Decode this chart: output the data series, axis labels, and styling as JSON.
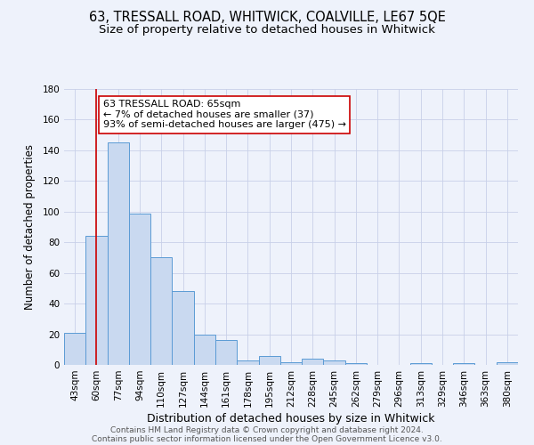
{
  "title": "63, TRESSALL ROAD, WHITWICK, COALVILLE, LE67 5QE",
  "subtitle": "Size of property relative to detached houses in Whitwick",
  "xlabel": "Distribution of detached houses by size in Whitwick",
  "ylabel": "Number of detached properties",
  "bar_labels": [
    "43sqm",
    "60sqm",
    "77sqm",
    "94sqm",
    "110sqm",
    "127sqm",
    "144sqm",
    "161sqm",
    "178sqm",
    "195sqm",
    "212sqm",
    "228sqm",
    "245sqm",
    "262sqm",
    "279sqm",
    "296sqm",
    "313sqm",
    "329sqm",
    "346sqm",
    "363sqm",
    "380sqm"
  ],
  "bar_values": [
    21,
    84,
    145,
    99,
    70,
    48,
    20,
    16,
    3,
    6,
    2,
    4,
    3,
    1,
    0,
    0,
    1,
    0,
    1,
    0,
    2
  ],
  "bar_color": "#c9d9f0",
  "bar_edge_color": "#5b9bd5",
  "bg_color": "#eef2fb",
  "grid_color": "#c8d0e8",
  "vline_x": 1,
  "vline_color": "#cc0000",
  "annotation_line1": "63 TRESSALL ROAD: 65sqm",
  "annotation_line2": "← 7% of detached houses are smaller (37)",
  "annotation_line3": "93% of semi-detached houses are larger (475) →",
  "annotation_box_color": "#ffffff",
  "annotation_border_color": "#cc0000",
  "ylim": [
    0,
    180
  ],
  "yticks": [
    0,
    20,
    40,
    60,
    80,
    100,
    120,
    140,
    160,
    180
  ],
  "footer1": "Contains HM Land Registry data © Crown copyright and database right 2024.",
  "footer2": "Contains public sector information licensed under the Open Government Licence v3.0.",
  "title_fontsize": 10.5,
  "subtitle_fontsize": 9.5,
  "xlabel_fontsize": 9,
  "ylabel_fontsize": 8.5,
  "tick_fontsize": 7.5,
  "annotation_fontsize": 8,
  "footer_fontsize": 6.5
}
